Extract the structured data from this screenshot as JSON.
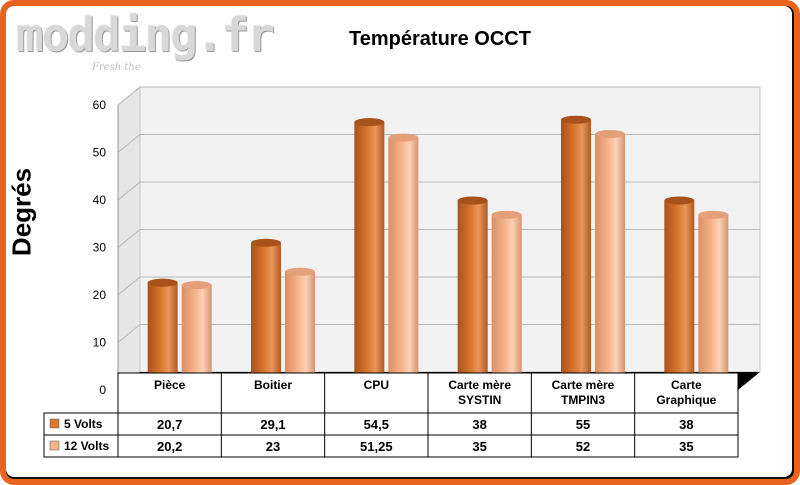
{
  "watermark": {
    "brand": "modding.fr",
    "tagline": "Fresh the"
  },
  "chart_data": {
    "type": "bar",
    "title": "Température OCCT",
    "ylabel": "Degrés",
    "xlabel": "",
    "ylim": [
      0,
      60
    ],
    "yticks": [
      "0",
      "10",
      "20",
      "30",
      "40",
      "50",
      "60"
    ],
    "grid": true,
    "categories": [
      "Pièce",
      "Boitier",
      "CPU",
      "Carte mère SYSTIN",
      "Carte mère TMPIN3",
      "Carte Graphique"
    ],
    "series": [
      {
        "name": "5 Volts",
        "color": "#d9782e",
        "values": [
          20.7,
          29.1,
          54.5,
          38,
          55,
          38
        ],
        "labels": [
          "20,7",
          "29,1",
          "54,5",
          "38",
          "55",
          "38"
        ]
      },
      {
        "name": "12 Volts",
        "color": "#f7b48b",
        "values": [
          20.2,
          23,
          51.25,
          35,
          52,
          35
        ],
        "labels": [
          "20,2",
          "23",
          "51,25",
          "35",
          "52",
          "35"
        ]
      }
    ],
    "data_table": true
  }
}
